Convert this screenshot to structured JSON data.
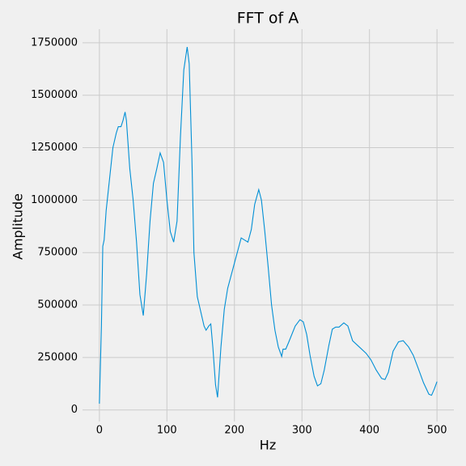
{
  "chart_data": {
    "type": "line",
    "title": "FFT of A",
    "x_label": "Hz",
    "y_label": "Amplitude",
    "x": [
      0,
      3,
      5,
      7,
      10,
      15,
      20,
      25,
      28,
      32,
      35,
      38,
      40,
      45,
      50,
      55,
      60,
      65,
      70,
      75,
      80,
      85,
      90,
      95,
      100,
      105,
      110,
      115,
      120,
      125,
      130,
      133,
      137,
      140,
      145,
      150,
      155,
      158,
      162,
      165,
      168,
      172,
      175,
      180,
      185,
      190,
      200,
      205,
      210,
      215,
      220,
      225,
      230,
      236,
      240,
      245,
      250,
      255,
      260,
      265,
      270,
      272,
      276,
      280,
      290,
      297,
      302,
      307,
      312,
      318,
      323,
      328,
      333,
      340,
      345,
      350,
      355,
      362,
      368,
      375,
      385,
      395,
      402,
      410,
      418,
      423,
      428,
      435,
      443,
      450,
      458,
      465,
      472,
      480,
      488,
      492,
      496,
      500
    ],
    "series": [
      {
        "name": "A",
        "color": "#008fd5",
        "values": [
          30000,
          400000,
          780000,
          810000,
          950000,
          1100000,
          1250000,
          1320000,
          1350000,
          1350000,
          1380000,
          1420000,
          1380000,
          1150000,
          1000000,
          800000,
          550000,
          450000,
          650000,
          900000,
          1080000,
          1150000,
          1225000,
          1180000,
          1000000,
          850000,
          800000,
          900000,
          1300000,
          1620000,
          1730000,
          1650000,
          1200000,
          750000,
          540000,
          470000,
          400000,
          380000,
          400000,
          410000,
          300000,
          120000,
          60000,
          300000,
          480000,
          580000,
          700000,
          760000,
          820000,
          810000,
          800000,
          860000,
          980000,
          1050000,
          1000000,
          850000,
          680000,
          500000,
          380000,
          300000,
          255000,
          290000,
          290000,
          320000,
          400000,
          430000,
          420000,
          360000,
          260000,
          160000,
          115000,
          125000,
          190000,
          310000,
          385000,
          395000,
          395000,
          415000,
          400000,
          330000,
          300000,
          270000,
          240000,
          190000,
          150000,
          145000,
          180000,
          280000,
          325000,
          330000,
          300000,
          260000,
          200000,
          130000,
          75000,
          70000,
          100000,
          135000
        ]
      }
    ],
    "xlim": [
      -25,
      525
    ],
    "ylim": [
      -55000,
      1815000
    ],
    "xticks": [
      0,
      100,
      200,
      300,
      400,
      500
    ],
    "yticks": [
      0,
      250000,
      500000,
      750000,
      1000000,
      1250000,
      1500000,
      1750000
    ],
    "grid": true
  }
}
